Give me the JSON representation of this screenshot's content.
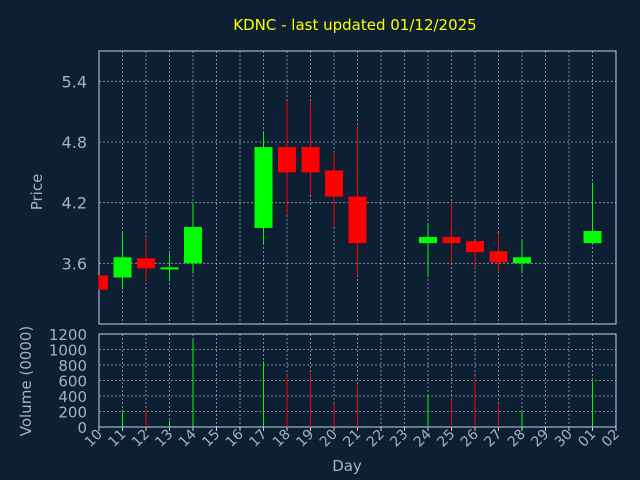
{
  "chart_data": {
    "type": "candlestick",
    "title": "KDNC - last updated 01/12/2025",
    "xlabel": "Day",
    "ylabel_price": "Price",
    "ylabel_volume": "Volume (0000)",
    "x_ticks": [
      "10",
      "11",
      "12",
      "13",
      "14",
      "15",
      "16",
      "17",
      "18",
      "19",
      "20",
      "21",
      "22",
      "23",
      "24",
      "25",
      "26",
      "27",
      "28",
      "29",
      "30",
      "01",
      "02"
    ],
    "price_ticks": [
      "3.6",
      "4.2",
      "4.8",
      "5.4"
    ],
    "volume_ticks": [
      "0",
      "200",
      "400",
      "600",
      "800",
      "1000",
      "1200"
    ],
    "price_ylim": [
      3.0,
      5.7
    ],
    "volume_ylim": [
      0,
      1200
    ],
    "colors": {
      "up": "#00ff00",
      "down": "#ff0000",
      "background": "#0d1f33",
      "title": "#ffff00",
      "axis_text": "#9fb3c8"
    },
    "candles": [
      {
        "day": "10",
        "open": 3.48,
        "close": 3.34,
        "high": 3.48,
        "low": 3.34,
        "volume": 0
      },
      {
        "day": "11",
        "open": 3.46,
        "close": 3.66,
        "high": 3.9,
        "low": 3.34,
        "volume": 220
      },
      {
        "day": "12",
        "open": 3.65,
        "close": 3.55,
        "high": 3.85,
        "low": 3.42,
        "volume": 230
      },
      {
        "day": "13",
        "open": 3.54,
        "close": 3.56,
        "high": 3.7,
        "low": 3.42,
        "volume": 80
      },
      {
        "day": "14",
        "open": 3.6,
        "close": 3.96,
        "high": 4.2,
        "low": 3.5,
        "volume": 1120
      },
      {
        "day": "17",
        "open": 3.95,
        "close": 4.75,
        "high": 4.9,
        "low": 3.8,
        "volume": 850
      },
      {
        "day": "18",
        "open": 4.75,
        "close": 4.5,
        "high": 5.2,
        "low": 4.08,
        "volume": 670
      },
      {
        "day": "19",
        "open": 4.75,
        "close": 4.5,
        "high": 5.2,
        "low": 4.28,
        "volume": 700
      },
      {
        "day": "20",
        "open": 4.52,
        "close": 4.26,
        "high": 4.7,
        "low": 3.96,
        "volume": 300
      },
      {
        "day": "21",
        "open": 4.26,
        "close": 3.8,
        "high": 4.96,
        "low": 3.48,
        "volume": 540
      },
      {
        "day": "24",
        "open": 3.8,
        "close": 3.86,
        "high": 4.0,
        "low": 3.48,
        "volume": 420
      },
      {
        "day": "25",
        "open": 3.86,
        "close": 3.8,
        "high": 4.2,
        "low": 3.6,
        "volume": 360
      },
      {
        "day": "26",
        "open": 3.82,
        "close": 3.71,
        "high": 3.82,
        "low": 3.56,
        "volume": 650
      },
      {
        "day": "27",
        "open": 3.72,
        "close": 3.61,
        "high": 3.9,
        "low": 3.5,
        "volume": 290
      },
      {
        "day": "28",
        "open": 3.6,
        "close": 3.66,
        "high": 3.82,
        "low": 3.5,
        "volume": 210
      },
      {
        "day": "01",
        "open": 3.8,
        "close": 3.92,
        "high": 4.4,
        "low": 3.8,
        "volume": 590
      }
    ]
  }
}
